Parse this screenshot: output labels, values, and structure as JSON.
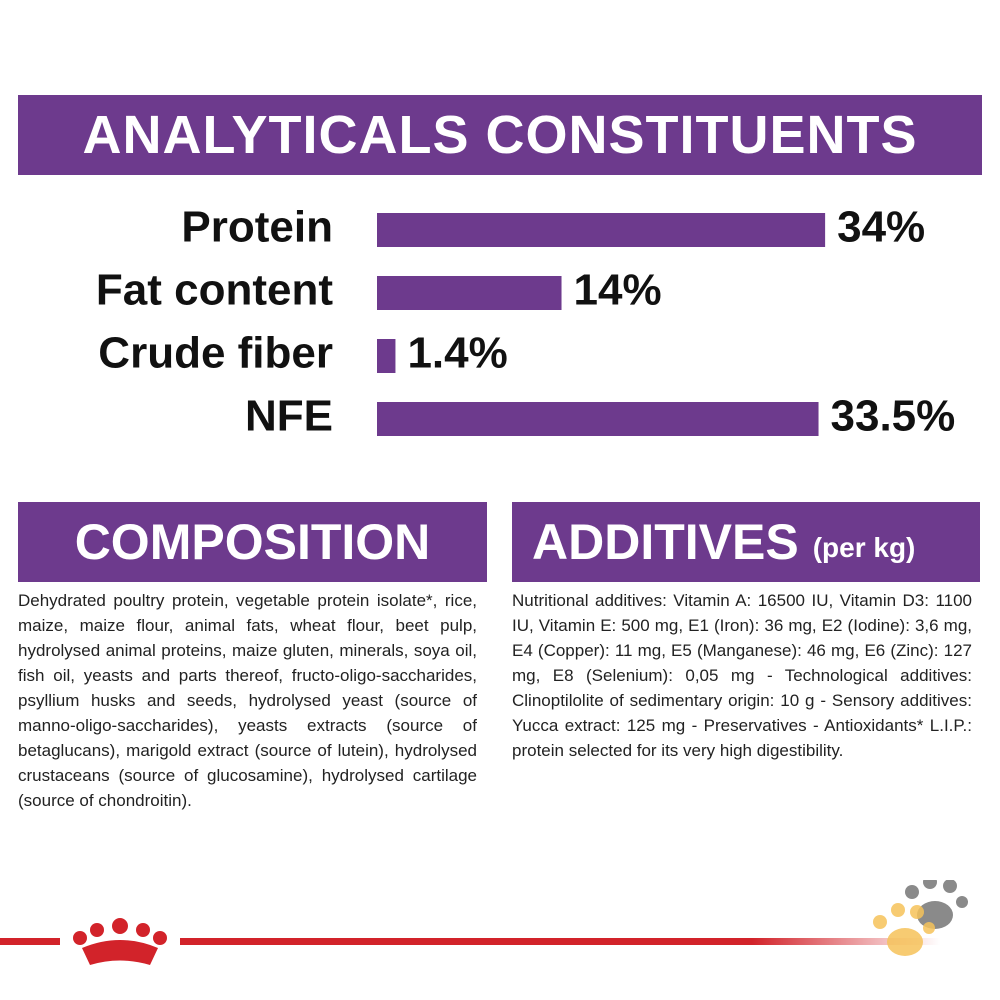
{
  "chart_data": {
    "type": "hbar",
    "title": "ANALYTICALS CONSTITUENTS",
    "categories": [
      "Protein",
      "Fat content",
      "Crude fiber",
      "NFE"
    ],
    "values": [
      34,
      14,
      1.4,
      33.5
    ],
    "value_labels": [
      "34%",
      "14%",
      "1.4%",
      "33.5%"
    ],
    "color": "#6d3a8d"
  },
  "composition": {
    "title": "COMPOSITION",
    "text": "Dehydrated poultry protein, vegetable protein isolate*, rice, maize, maize flour, animal fats, wheat flour, beet pulp, hydrolysed animal proteins, maize gluten, minerals, soya oil, fish oil, yeasts and parts thereof, fructo-oligo-saccharides, psyllium husks and seeds, hydrolysed yeast (source of manno-oligo-saccharides), yeasts extracts (source of betaglucans), marigold extract (source of lutein), hydrolysed crustaceans (source of glucosamine), hydrolysed cartilage (source of chondroitin)."
  },
  "additives": {
    "title": "ADDITIVES",
    "subtitle": "(per kg)",
    "text": "Nutritional additives: Vitamin A: 16500 IU, Vitamin D3: 1100 IU, Vitamin E: 500 mg, E1 (Iron): 36 mg, E2 (Iodine): 3,6 mg, E4 (Copper): 11 mg, E5 (Manganese): 46 mg, E6 (Zinc): 127 mg, E8 (Selenium): 0,05 mg - Technological additives: Clinoptilolite of sedimentary origin: 10 g - Sensory additives: Yucca extract: 125 mg - Preservatives - Antioxidants* L.I.P.: protein selected for its very high digestibility."
  }
}
